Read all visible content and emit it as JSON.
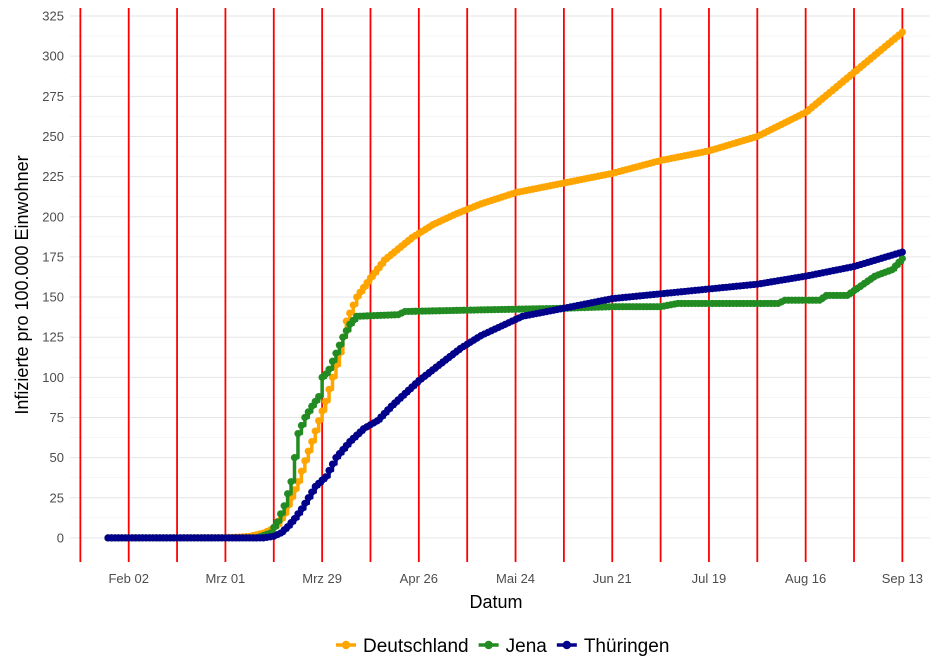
{
  "chart_data": {
    "type": "line",
    "xlabel": "Datum",
    "ylabel": "Infizierte pro 100.000 Einwohner",
    "x_tick_labels": [
      "Feb 02",
      "Mrz 01",
      "Mrz 29",
      "Apr 26",
      "Mai 24",
      "Jun 21",
      "Jul 19",
      "Aug 16",
      "Sep 13"
    ],
    "x_tick_dates": [
      "2020-02-02",
      "2020-03-01",
      "2020-03-29",
      "2020-04-26",
      "2020-05-24",
      "2020-06-21",
      "2020-07-19",
      "2020-08-16",
      "2020-09-13"
    ],
    "xlim": [
      "2020-01-16",
      "2020-09-21"
    ],
    "y_ticks": [
      0,
      25,
      50,
      75,
      100,
      125,
      150,
      175,
      200,
      225,
      250,
      275,
      300,
      325
    ],
    "ylim": [
      -15,
      330
    ],
    "vertical_markers": [
      "2020-01-19",
      "2020-02-02",
      "2020-02-16",
      "2020-03-01",
      "2020-03-15",
      "2020-03-29",
      "2020-04-12",
      "2020-04-26",
      "2020-05-10",
      "2020-05-24",
      "2020-06-07",
      "2020-06-21",
      "2020-07-05",
      "2020-07-19",
      "2020-08-02",
      "2020-08-16",
      "2020-08-30",
      "2020-09-13"
    ],
    "grid": true,
    "legend_position": "bottom",
    "series": [
      {
        "name": "Deutschland",
        "color": "#FFA500",
        "points": [
          [
            "2020-01-27",
            0
          ],
          [
            "2020-03-01",
            0.1
          ],
          [
            "2020-03-05",
            0.5
          ],
          [
            "2020-03-08",
            1
          ],
          [
            "2020-03-10",
            2
          ],
          [
            "2020-03-12",
            3
          ],
          [
            "2020-03-14",
            5
          ],
          [
            "2020-03-16",
            8
          ],
          [
            "2020-03-18",
            15
          ],
          [
            "2020-03-20",
            25
          ],
          [
            "2020-03-22",
            35
          ],
          [
            "2020-03-24",
            48
          ],
          [
            "2020-03-26",
            60
          ],
          [
            "2020-03-28",
            73
          ],
          [
            "2020-03-30",
            85
          ],
          [
            "2020-04-01",
            100
          ],
          [
            "2020-04-03",
            115
          ],
          [
            "2020-04-05",
            135
          ],
          [
            "2020-04-08",
            150
          ],
          [
            "2020-04-12",
            162
          ],
          [
            "2020-04-16",
            173
          ],
          [
            "2020-04-20",
            180
          ],
          [
            "2020-04-24",
            187
          ],
          [
            "2020-04-30",
            195
          ],
          [
            "2020-05-07",
            202
          ],
          [
            "2020-05-14",
            208
          ],
          [
            "2020-05-24",
            215
          ],
          [
            "2020-06-07",
            221
          ],
          [
            "2020-06-21",
            227
          ],
          [
            "2020-07-05",
            235
          ],
          [
            "2020-07-19",
            241
          ],
          [
            "2020-08-02",
            250
          ],
          [
            "2020-08-16",
            265
          ],
          [
            "2020-08-30",
            290
          ],
          [
            "2020-09-13",
            315
          ]
        ]
      },
      {
        "name": "Jena",
        "color": "#228B22",
        "points": [
          [
            "2020-01-27",
            0
          ],
          [
            "2020-03-10",
            0
          ],
          [
            "2020-03-14",
            3
          ],
          [
            "2020-03-16",
            10
          ],
          [
            "2020-03-18",
            20
          ],
          [
            "2020-03-20",
            35
          ],
          [
            "2020-03-21",
            50
          ],
          [
            "2020-03-22",
            65
          ],
          [
            "2020-03-24",
            75
          ],
          [
            "2020-03-26",
            82
          ],
          [
            "2020-03-28",
            88
          ],
          [
            "2020-03-29",
            100
          ],
          [
            "2020-03-30",
            102
          ],
          [
            "2020-03-31",
            105
          ],
          [
            "2020-04-02",
            115
          ],
          [
            "2020-04-04",
            125
          ],
          [
            "2020-04-06",
            133
          ],
          [
            "2020-04-08",
            138
          ],
          [
            "2020-04-20",
            139
          ],
          [
            "2020-04-22",
            141
          ],
          [
            "2020-05-14",
            142
          ],
          [
            "2020-06-07",
            143
          ],
          [
            "2020-06-21",
            144
          ],
          [
            "2020-07-05",
            144
          ],
          [
            "2020-07-10",
            146
          ],
          [
            "2020-08-08",
            146
          ],
          [
            "2020-08-10",
            148
          ],
          [
            "2020-08-20",
            148
          ],
          [
            "2020-08-22",
            151
          ],
          [
            "2020-08-28",
            151
          ],
          [
            "2020-09-01",
            157
          ],
          [
            "2020-09-05",
            163
          ],
          [
            "2020-09-10",
            167
          ],
          [
            "2020-09-13",
            174
          ]
        ]
      },
      {
        "name": "Thüringen",
        "color": "#00008B",
        "points": [
          [
            "2020-01-27",
            0
          ],
          [
            "2020-03-12",
            0
          ],
          [
            "2020-03-15",
            1
          ],
          [
            "2020-03-17",
            3
          ],
          [
            "2020-03-19",
            7
          ],
          [
            "2020-03-21",
            12
          ],
          [
            "2020-03-23",
            18
          ],
          [
            "2020-03-25",
            25
          ],
          [
            "2020-03-27",
            32
          ],
          [
            "2020-03-30",
            38
          ],
          [
            "2020-04-02",
            50
          ],
          [
            "2020-04-06",
            60
          ],
          [
            "2020-04-10",
            68
          ],
          [
            "2020-04-14",
            73
          ],
          [
            "2020-04-18",
            82
          ],
          [
            "2020-04-22",
            90
          ],
          [
            "2020-04-26",
            98
          ],
          [
            "2020-05-02",
            108
          ],
          [
            "2020-05-08",
            118
          ],
          [
            "2020-05-14",
            126
          ],
          [
            "2020-05-20",
            132
          ],
          [
            "2020-05-26",
            138
          ],
          [
            "2020-06-07",
            143
          ],
          [
            "2020-06-21",
            149
          ],
          [
            "2020-07-05",
            152
          ],
          [
            "2020-07-19",
            155
          ],
          [
            "2020-08-02",
            158
          ],
          [
            "2020-08-16",
            163
          ],
          [
            "2020-08-30",
            169
          ],
          [
            "2020-09-13",
            178
          ]
        ]
      }
    ]
  }
}
